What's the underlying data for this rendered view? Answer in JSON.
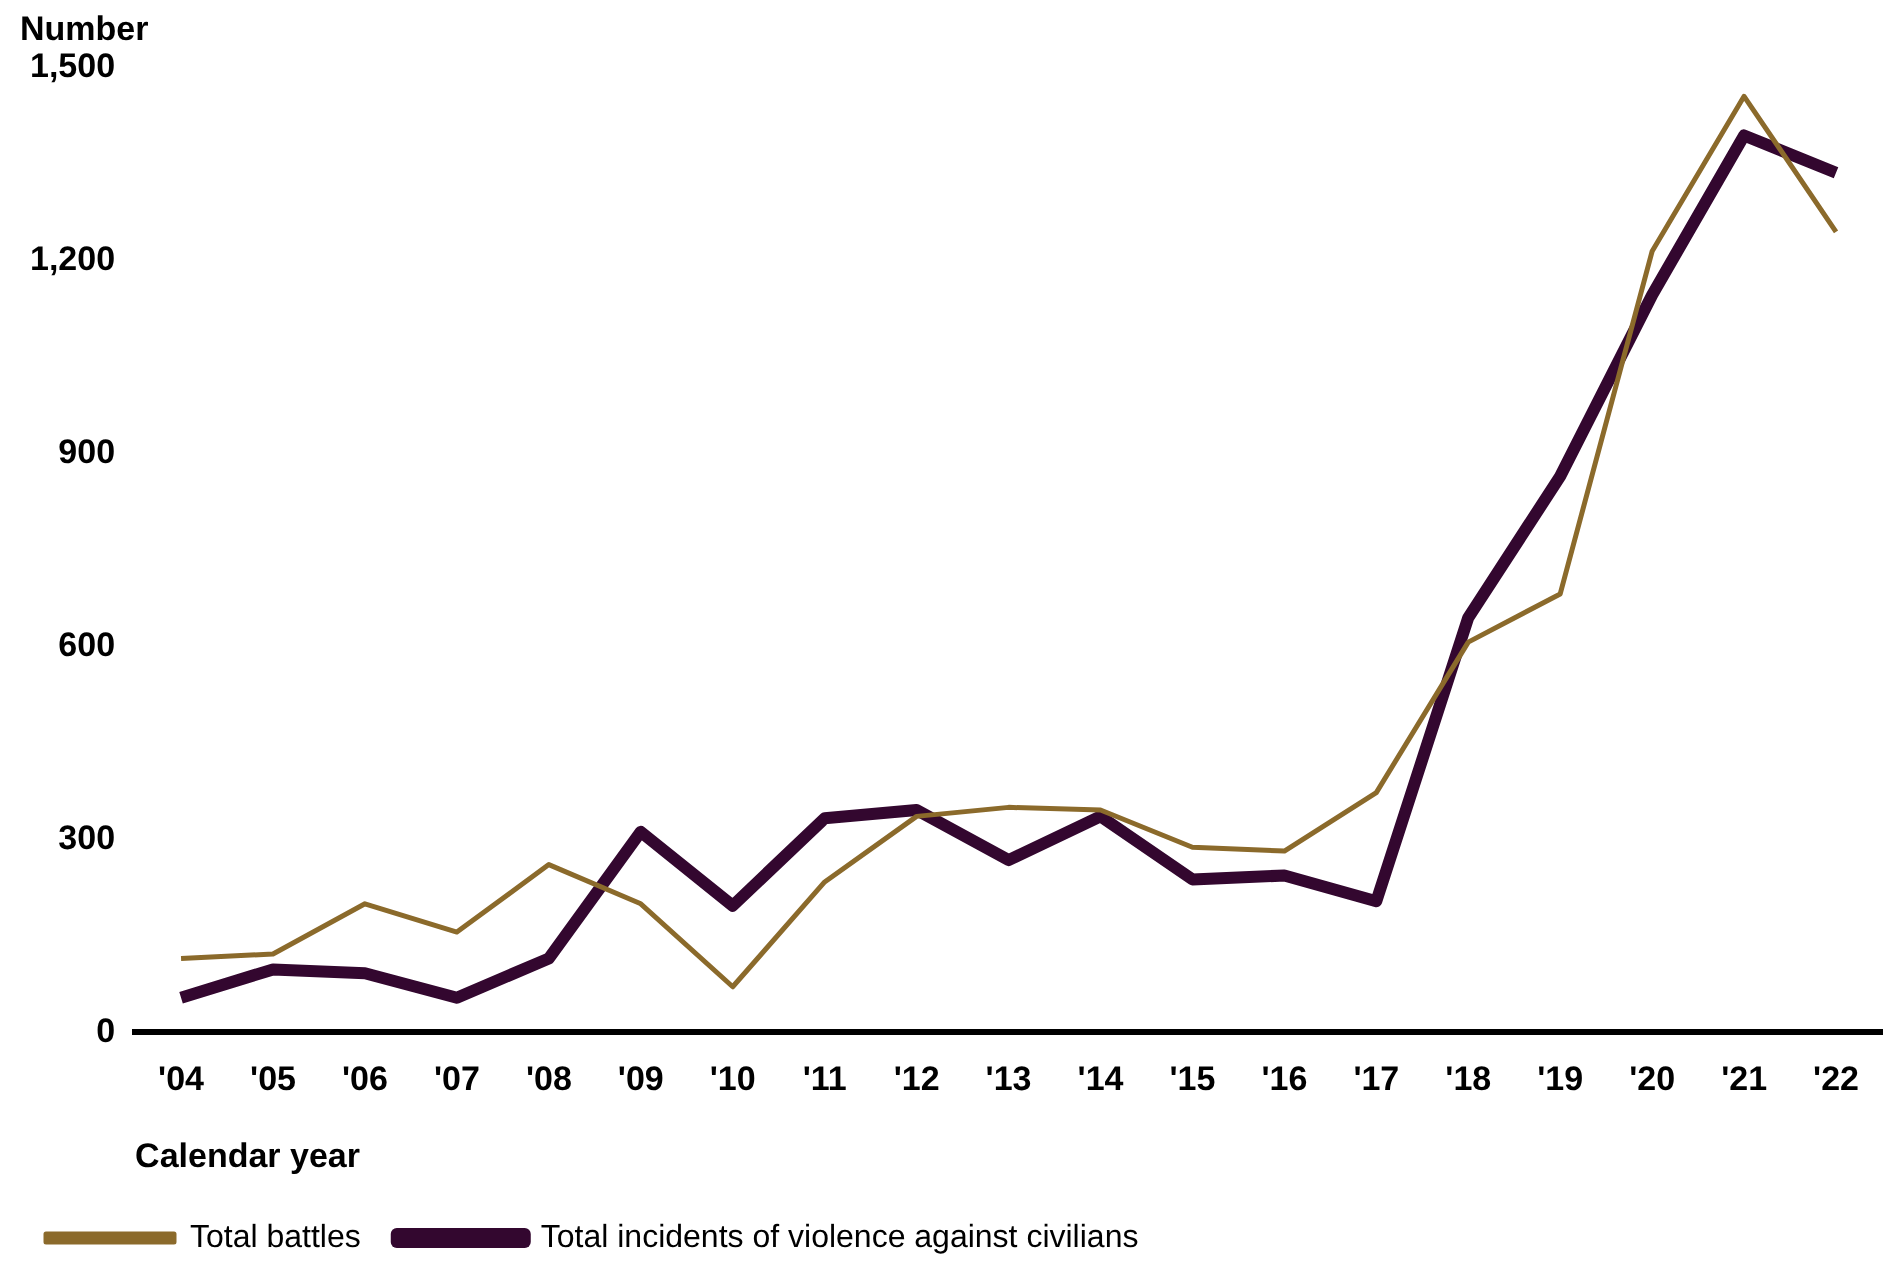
{
  "chart_data": {
    "type": "line",
    "ylabel": "Number",
    "xlabel": "Calendar year",
    "categories": [
      "'04",
      "'05",
      "'06",
      "'07",
      "'08",
      "'09",
      "'10",
      "'11",
      "'12",
      "'13",
      "'14",
      "'15",
      "'16",
      "'17",
      "'18",
      "'19",
      "'20",
      "'21",
      "'22"
    ],
    "series": [
      {
        "name": "Total battles",
        "color": "#8b6a2b",
        "values": [
          115,
          122,
          200,
          156,
          261,
          200,
          71,
          234,
          336,
          350,
          346,
          288,
          282,
          373,
          607,
          682,
          1215,
          1456,
          1245
        ]
      },
      {
        "name": "Total incidents of violence against civilians",
        "color": "#33072f",
        "values": [
          54,
          98,
          92,
          54,
          115,
          312,
          197,
          333,
          346,
          268,
          336,
          238,
          244,
          204,
          645,
          865,
          1147,
          1395,
          1337
        ]
      }
    ],
    "ylim": [
      0,
      1500
    ],
    "yticks": [
      0,
      300,
      600,
      900,
      {
        "value": 1200,
        "label": "1,200"
      },
      {
        "value": 1500,
        "label": "1,500"
      }
    ],
    "grid": false,
    "legend": "bottom left",
    "marker": "none",
    "line_style": "solid"
  }
}
